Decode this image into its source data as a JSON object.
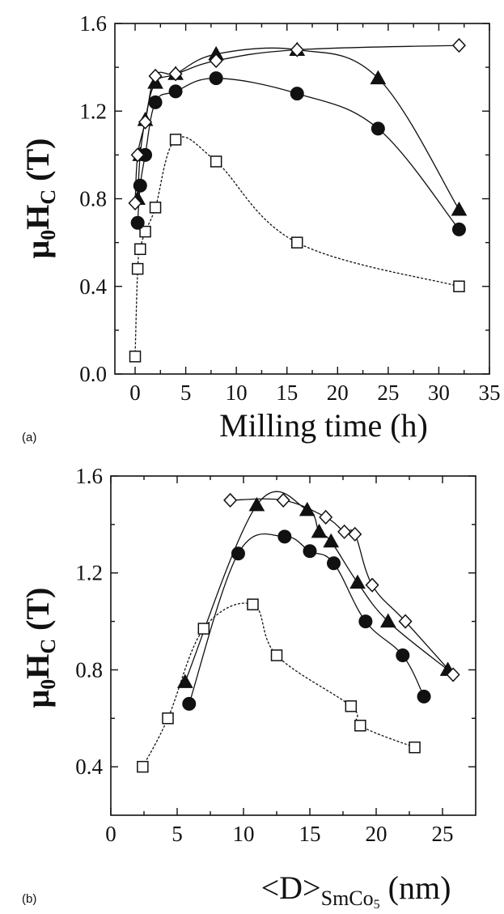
{
  "chart_data": [
    {
      "type": "scatter",
      "panel": "(a)",
      "xlabel": "Milling time (h)",
      "ylabel": "μ0HC (T)",
      "xlim": [
        -2,
        35
      ],
      "ylim": [
        0.0,
        1.6
      ],
      "xticks": [
        0,
        5,
        10,
        15,
        20,
        25,
        30,
        35
      ],
      "yticks": [
        0.0,
        0.4,
        0.8,
        1.2,
        1.6
      ],
      "xtick_labels": [
        "0",
        "5",
        "10",
        "15",
        "20",
        "25",
        "30",
        "35"
      ],
      "ytick_labels": [
        "0.0",
        "0.4",
        "0.8",
        "1.2",
        "1.6"
      ],
      "series": [
        {
          "marker": "square-open",
          "line": "dotted",
          "points": [
            [
              0,
              0.08
            ],
            [
              0.25,
              0.48
            ],
            [
              0.5,
              0.57
            ],
            [
              1,
              0.65
            ],
            [
              2,
              0.76
            ],
            [
              4,
              1.07
            ],
            [
              8,
              0.97
            ],
            [
              16,
              0.6
            ],
            [
              32,
              0.4
            ]
          ]
        },
        {
          "marker": "circle-filled",
          "line": "solid",
          "points": [
            [
              0.25,
              0.69
            ],
            [
              0.5,
              0.86
            ],
            [
              1,
              1.0
            ],
            [
              2,
              1.24
            ],
            [
              4,
              1.29
            ],
            [
              8,
              1.35
            ],
            [
              16,
              1.28
            ],
            [
              24,
              1.12
            ],
            [
              32,
              0.66
            ]
          ]
        },
        {
          "marker": "triangle-filled",
          "line": "solid",
          "points": [
            [
              0.25,
              0.8
            ],
            [
              0.5,
              1.0
            ],
            [
              1,
              1.16
            ],
            [
              2,
              1.33
            ],
            [
              4,
              1.37
            ],
            [
              8,
              1.46
            ],
            [
              16,
              1.48
            ],
            [
              24,
              1.35
            ],
            [
              32,
              0.75
            ]
          ]
        },
        {
          "marker": "diamond-open",
          "line": "solid",
          "points": [
            [
              0,
              0.78
            ],
            [
              0.25,
              1.0
            ],
            [
              1,
              1.15
            ],
            [
              2,
              1.36
            ],
            [
              4,
              1.37
            ],
            [
              8,
              1.43
            ],
            [
              16,
              1.48
            ],
            [
              32,
              1.5
            ]
          ]
        }
      ]
    },
    {
      "type": "scatter",
      "panel": "(b)",
      "xlabel": "<D>SmCo5 (nm)",
      "ylabel": "μ0HC (T)",
      "xlim": [
        0,
        27.5
      ],
      "ylim": [
        0.2,
        1.6
      ],
      "xticks": [
        0,
        5,
        10,
        15,
        20,
        25
      ],
      "yticks": [
        0.4,
        0.8,
        1.2,
        1.6
      ],
      "xtick_labels": [
        "0",
        "5",
        "10",
        "15",
        "20",
        "25"
      ],
      "ytick_labels": [
        "0.4",
        "0.8",
        "1.2",
        "1.6"
      ],
      "series": [
        {
          "marker": "square-open",
          "line": "dotted",
          "points": [
            [
              2.4,
              0.4
            ],
            [
              4.3,
              0.6
            ],
            [
              7.0,
              0.97
            ],
            [
              10.7,
              1.07
            ],
            [
              12.5,
              0.86
            ],
            [
              18.1,
              0.65
            ],
            [
              18.8,
              0.57
            ],
            [
              22.9,
              0.48
            ]
          ]
        },
        {
          "marker": "circle-filled",
          "line": "solid",
          "points": [
            [
              5.9,
              0.66
            ],
            [
              9.6,
              1.28
            ],
            [
              13.1,
              1.35
            ],
            [
              15.0,
              1.29
            ],
            [
              16.8,
              1.24
            ],
            [
              19.2,
              1.0
            ],
            [
              22.0,
              0.86
            ],
            [
              23.6,
              0.69
            ]
          ]
        },
        {
          "marker": "triangle-filled",
          "line": "solid",
          "points": [
            [
              5.6,
              0.75
            ],
            [
              11.0,
              1.48
            ],
            [
              14.8,
              1.46
            ],
            [
              15.7,
              1.37
            ],
            [
              16.6,
              1.33
            ],
            [
              18.6,
              1.16
            ],
            [
              20.9,
              1.0
            ],
            [
              25.4,
              0.8
            ]
          ]
        },
        {
          "marker": "diamond-open",
          "line": "solid",
          "points": [
            [
              9.0,
              1.5
            ],
            [
              13.0,
              1.5
            ],
            [
              16.2,
              1.43
            ],
            [
              17.6,
              1.37
            ],
            [
              18.4,
              1.36
            ],
            [
              19.7,
              1.15
            ],
            [
              22.2,
              1.0
            ],
            [
              25.8,
              0.78
            ]
          ]
        }
      ]
    }
  ],
  "labels": {
    "a": {
      "panel": "(a)",
      "xlabel": "Milling time (h)",
      "ylabel_main": "μ",
      "ylabel_sub0": "0",
      "ylabel_H": "H",
      "ylabel_subC": "C",
      "ylabel_unit": " (T)"
    },
    "b": {
      "panel": "(b)",
      "xlabel_open": "<D>",
      "xlabel_sub": "SmCo",
      "xlabel_sub5": "5",
      "xlabel_unit": " (nm)",
      "ylabel_main": "μ",
      "ylabel_sub0": "0",
      "ylabel_H": "H",
      "ylabel_subC": "C",
      "ylabel_unit": " (T)"
    }
  }
}
